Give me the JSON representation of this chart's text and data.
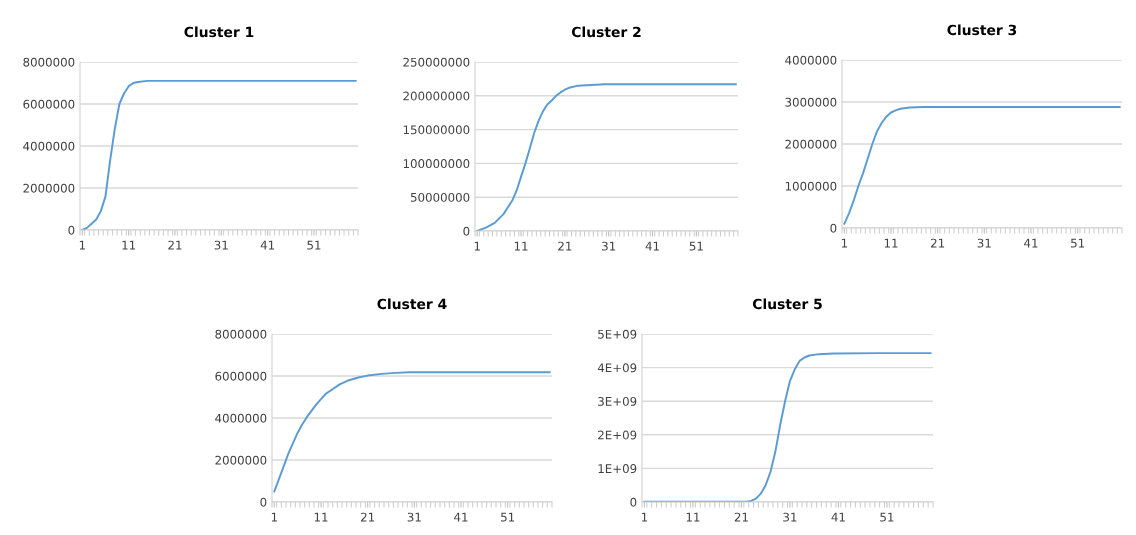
{
  "chart_data": [
    {
      "type": "line",
      "title": "Cluster 1",
      "xlim": [
        0.5,
        60.5
      ],
      "xticks": [
        1,
        11,
        21,
        31,
        41,
        51
      ],
      "ylim": [
        0,
        8000000
      ],
      "yticks": [
        0,
        2000000,
        4000000,
        6000000,
        8000000
      ],
      "grid": "y",
      "marker": "none",
      "series": [
        {
          "color": "#5b9bd5",
          "x": [
            1,
            2,
            3,
            4,
            5,
            6,
            7,
            8,
            9,
            10,
            11,
            12,
            13,
            15,
            20,
            30,
            40,
            50,
            60
          ],
          "values": [
            0,
            100000,
            300000,
            500000,
            900000,
            1600000,
            3300000,
            4800000,
            6000000,
            6500000,
            6850000,
            7000000,
            7050000,
            7100000,
            7100000,
            7100000,
            7100000,
            7100000,
            7100000
          ]
        }
      ]
    },
    {
      "type": "line",
      "title": "Cluster 2",
      "xlim": [
        0.5,
        60.5
      ],
      "xticks": [
        1,
        11,
        21,
        31,
        41,
        51
      ],
      "ylim": [
        0,
        250000000
      ],
      "yticks": [
        0,
        50000000,
        100000000,
        150000000,
        200000000,
        250000000
      ],
      "grid": "y",
      "marker": "none",
      "series": [
        {
          "color": "#5b9bd5",
          "x": [
            1,
            3,
            5,
            7,
            9,
            10,
            11,
            12,
            13,
            14,
            15,
            16,
            17,
            18,
            19,
            20,
            21,
            22,
            24,
            27,
            30,
            40,
            50,
            60
          ],
          "values": [
            0,
            5000000,
            12000000,
            25000000,
            45000000,
            60000000,
            80000000,
            100000000,
            122000000,
            145000000,
            163000000,
            177000000,
            187000000,
            193000000,
            200000000,
            205000000,
            209000000,
            212000000,
            215000000,
            216000000,
            217000000,
            217000000,
            217000000,
            217000000
          ]
        }
      ]
    },
    {
      "type": "line",
      "title": "Cluster 3",
      "xlim": [
        0.5,
        60.5
      ],
      "xticks": [
        1,
        11,
        21,
        31,
        41,
        51
      ],
      "ylim": [
        0,
        4000000
      ],
      "yticks": [
        0,
        1000000,
        2000000,
        3000000,
        4000000
      ],
      "grid": "y",
      "marker": "none",
      "series": [
        {
          "color": "#5b9bd5",
          "x": [
            1,
            2,
            3,
            4,
            5,
            6,
            7,
            8,
            9,
            10,
            11,
            12,
            13,
            15,
            18,
            30,
            40,
            50,
            60
          ],
          "values": [
            100000,
            350000,
            650000,
            1000000,
            1300000,
            1650000,
            2000000,
            2300000,
            2500000,
            2650000,
            2750000,
            2800000,
            2840000,
            2870000,
            2880000,
            2880000,
            2880000,
            2880000,
            2880000
          ]
        }
      ]
    },
    {
      "type": "line",
      "title": "Cluster 4",
      "xlim": [
        0.5,
        60.5
      ],
      "xticks": [
        1,
        11,
        21,
        31,
        41,
        51
      ],
      "ylim": [
        0,
        8000000
      ],
      "yticks": [
        0,
        2000000,
        4000000,
        6000000,
        8000000
      ],
      "grid": "y",
      "marker": "none",
      "series": [
        {
          "color": "#5b9bd5",
          "x": [
            1,
            2,
            3,
            4,
            5,
            6,
            7,
            8,
            9,
            10,
            11,
            12,
            13,
            15,
            17,
            19,
            21,
            24,
            27,
            30,
            40,
            50,
            60
          ],
          "values": [
            500000,
            1100000,
            1700000,
            2300000,
            2800000,
            3300000,
            3700000,
            4050000,
            4350000,
            4650000,
            4900000,
            5150000,
            5300000,
            5600000,
            5800000,
            5930000,
            6020000,
            6100000,
            6150000,
            6180000,
            6180000,
            6180000,
            6180000
          ]
        }
      ]
    },
    {
      "type": "line",
      "title": "Cluster 5",
      "xlim": [
        0.5,
        60.5
      ],
      "xticks": [
        1,
        11,
        21,
        31,
        41,
        51
      ],
      "ylim": [
        0,
        5000000000
      ],
      "yticks": [
        {
          "value": 0,
          "label": "0"
        },
        {
          "value": 1000000000,
          "label": "1E+09"
        },
        {
          "value": 2000000000,
          "label": "2E+09"
        },
        {
          "value": 3000000000,
          "label": "3E+09"
        },
        {
          "value": 4000000000,
          "label": "4E+09"
        },
        {
          "value": 5000000000,
          "label": "5E+09"
        }
      ],
      "grid": "y",
      "marker": "none",
      "series": [
        {
          "color": "#5b9bd5",
          "x": [
            1,
            10,
            20,
            22,
            23,
            24,
            25,
            26,
            27,
            28,
            29,
            30,
            31,
            32,
            33,
            34,
            35,
            37,
            40,
            50,
            60
          ],
          "values": [
            10000000,
            10000000,
            10000000,
            10000000,
            30000000,
            100000000,
            250000000,
            500000000,
            900000000,
            1500000000,
            2300000000,
            3000000000,
            3600000000,
            3950000000,
            4200000000,
            4300000000,
            4360000000,
            4400000000,
            4420000000,
            4430000000,
            4430000000
          ]
        }
      ]
    }
  ]
}
